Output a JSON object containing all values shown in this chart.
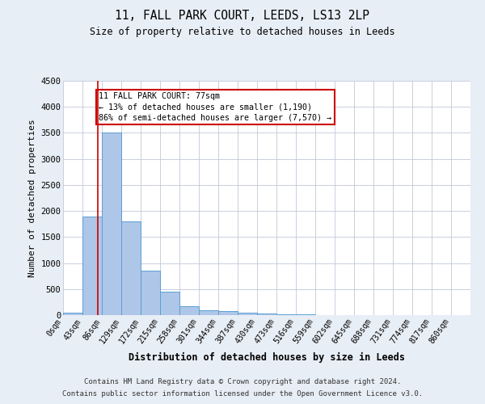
{
  "title1": "11, FALL PARK COURT, LEEDS, LS13 2LP",
  "title2": "Size of property relative to detached houses in Leeds",
  "xlabel": "Distribution of detached houses by size in Leeds",
  "ylabel": "Number of detached properties",
  "bin_labels": [
    "0sqm",
    "43sqm",
    "86sqm",
    "129sqm",
    "172sqm",
    "215sqm",
    "258sqm",
    "301sqm",
    "344sqm",
    "387sqm",
    "430sqm",
    "473sqm",
    "516sqm",
    "559sqm",
    "602sqm",
    "645sqm",
    "688sqm",
    "731sqm",
    "774sqm",
    "817sqm",
    "860sqm"
  ],
  "bar_values": [
    50,
    1900,
    3500,
    1800,
    850,
    450,
    175,
    100,
    75,
    50,
    30,
    15,
    8,
    5,
    3,
    2,
    2,
    1,
    1,
    1,
    0
  ],
  "bar_color": "#aec6e8",
  "bar_edge_color": "#5a9fd4",
  "ylim": [
    0,
    4500
  ],
  "yticks": [
    0,
    500,
    1000,
    1500,
    2000,
    2500,
    3000,
    3500,
    4000,
    4500
  ],
  "property_line_x": 77,
  "bin_width": 43,
  "annotation_text": "11 FALL PARK COURT: 77sqm\n← 13% of detached houses are smaller (1,190)\n86% of semi-detached houses are larger (7,570) →",
  "annotation_box_color": "#ffffff",
  "annotation_box_edge_color": "#cc0000",
  "property_line_color": "#cc0000",
  "footer1": "Contains HM Land Registry data © Crown copyright and database right 2024.",
  "footer2": "Contains public sector information licensed under the Open Government Licence v3.0.",
  "background_color": "#e8eef5",
  "plot_bg_color": "#ffffff"
}
